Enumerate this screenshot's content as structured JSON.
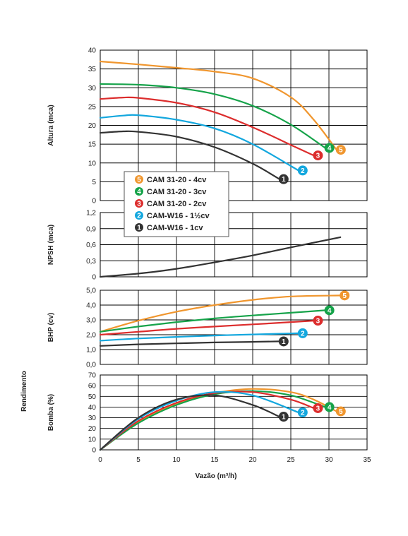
{
  "chart_data": {
    "type": "line",
    "xlabel": "Vazão (m³/h)",
    "xlim": [
      0,
      35
    ],
    "x_ticks": [
      "0",
      "5",
      "10",
      "15",
      "20",
      "25",
      "30",
      "35"
    ],
    "legend": [
      {
        "badge": "5",
        "label": "CAM 31-20 - 4cv",
        "color": "#f0962e"
      },
      {
        "badge": "4",
        "label": "CAM 31-20 - 3cv",
        "color": "#16a34a"
      },
      {
        "badge": "3",
        "label": "CAM 31-20 - 2cv",
        "color": "#dc2d2d"
      },
      {
        "badge": "2",
        "label": "CAM-W16 - 1½cv",
        "color": "#13a7de"
      },
      {
        "badge": "1",
        "label": "CAM-W16 - 1cv",
        "color": "#333333"
      }
    ],
    "panels": [
      {
        "id": "altura",
        "ylabel": "Altura (mca)",
        "ylim": [
          0,
          40
        ],
        "y_ticks": [
          "0",
          "5",
          "10",
          "15",
          "20",
          "25",
          "30",
          "35",
          "40"
        ],
        "series": [
          {
            "badge": "5",
            "color": "#f0962e",
            "x": [
              0,
              5,
              10,
              15,
              20,
              25,
              28,
              31
            ],
            "y": [
              37,
              36.2,
              35.3,
              34.3,
              32.5,
              27.5,
              21.5,
              13.5
            ]
          },
          {
            "badge": "4",
            "color": "#16a34a",
            "x": [
              0,
              5,
              10,
              15,
              20,
              25,
              29.5
            ],
            "y": [
              31,
              30.8,
              30,
              28.3,
              25.2,
              20.2,
              14
            ]
          },
          {
            "badge": "3",
            "color": "#dc2d2d",
            "x": [
              0,
              3,
              5,
              10,
              15,
              20,
              25,
              28
            ],
            "y": [
              27,
              27.4,
              27.3,
              26,
              23.5,
              19.5,
              14.8,
              12
            ]
          },
          {
            "badge": "2",
            "color": "#13a7de",
            "x": [
              0,
              3,
              5,
              10,
              15,
              20,
              26
            ],
            "y": [
              22,
              22.6,
              22.7,
              21.5,
              19.2,
              15,
              8
            ]
          },
          {
            "badge": "1",
            "color": "#333333",
            "x": [
              0,
              3,
              5,
              10,
              15,
              20,
              23.5
            ],
            "y": [
              18,
              18.4,
              18.3,
              17,
              14.2,
              9.8,
              5.7
            ]
          }
        ]
      },
      {
        "id": "npsh",
        "ylabel": "NPSH (mca)",
        "ylim": [
          0,
          1.2
        ],
        "y_ticks": [
          "0",
          "0,3",
          "0,6",
          "0,9",
          "1,2"
        ],
        "series": [
          {
            "color": "#333333",
            "x": [
              0,
              5,
              10,
              15,
              20,
              25,
              31.5
            ],
            "y": [
              0,
              0.06,
              0.15,
              0.27,
              0.4,
              0.55,
              0.74
            ]
          }
        ]
      },
      {
        "id": "bhp",
        "ylabel": "BHP (cv)",
        "ylim": [
          0,
          5
        ],
        "y_ticks": [
          "0,0",
          "1,0",
          "2,0",
          "3,0",
          "4,0",
          "5,0"
        ],
        "series": [
          {
            "badge": "5",
            "color": "#f0962e",
            "x": [
              0,
              5,
              10,
              15,
              20,
              25,
              31.5
            ],
            "y": [
              2.2,
              2.95,
              3.55,
              4.0,
              4.35,
              4.58,
              4.65
            ]
          },
          {
            "badge": "4",
            "color": "#16a34a",
            "x": [
              0,
              5,
              10,
              15,
              20,
              25,
              29.5
            ],
            "y": [
              2.2,
              2.55,
              2.85,
              3.1,
              3.3,
              3.48,
              3.65
            ]
          },
          {
            "badge": "3",
            "color": "#dc2d2d",
            "x": [
              0,
              5,
              10,
              15,
              20,
              25,
              28
            ],
            "y": [
              2.0,
              2.2,
              2.4,
              2.55,
              2.7,
              2.85,
              2.95
            ]
          },
          {
            "badge": "2",
            "color": "#13a7de",
            "x": [
              0,
              5,
              10,
              15,
              20,
              26
            ],
            "y": [
              1.6,
              1.75,
              1.85,
              1.95,
              2.02,
              2.1
            ]
          },
          {
            "badge": "1",
            "color": "#333333",
            "x": [
              0,
              5,
              10,
              15,
              20,
              23.5
            ],
            "y": [
              1.25,
              1.35,
              1.42,
              1.48,
              1.52,
              1.55
            ]
          }
        ]
      },
      {
        "id": "rendimento",
        "ylabel": "Bomba (%)",
        "ylabel2": "Rendimento",
        "ylim": [
          0,
          70
        ],
        "y_ticks": [
          "0",
          "10",
          "20",
          "30",
          "40",
          "50",
          "60",
          "70"
        ],
        "series": [
          {
            "badge": "5",
            "color": "#f0962e",
            "x": [
              0,
              5,
              10,
              15,
              20,
              25,
              28,
              31
            ],
            "y": [
              0,
              26,
              43,
              53,
              57,
              54,
              47,
              36
            ]
          },
          {
            "badge": "4",
            "color": "#16a34a",
            "x": [
              0,
              5,
              10,
              15,
              20,
              25,
              29.5
            ],
            "y": [
              0,
              25,
              42,
              52,
              55,
              51,
              40
            ]
          },
          {
            "badge": "3",
            "color": "#dc2d2d",
            "x": [
              0,
              5,
              10,
              15,
              20,
              25,
              28
            ],
            "y": [
              0,
              27,
              44,
              53,
              54,
              47,
              39
            ]
          },
          {
            "badge": "2",
            "color": "#13a7de",
            "x": [
              0,
              5,
              10,
              15,
              20,
              26
            ],
            "y": [
              0,
              29,
              46,
              54,
              51,
              35
            ]
          },
          {
            "badge": "1",
            "color": "#333333",
            "x": [
              0,
              5,
              10,
              15,
              20,
              23.5
            ],
            "y": [
              0,
              30,
              47,
              51,
              42,
              31
            ]
          }
        ]
      }
    ]
  }
}
